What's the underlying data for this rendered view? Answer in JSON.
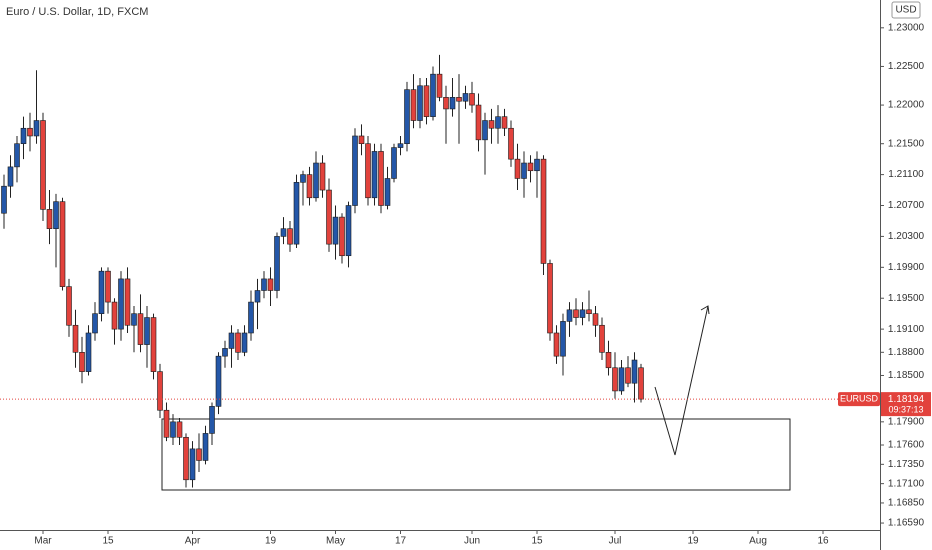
{
  "chart_data": {
    "type": "candlestick",
    "title": "Euro / U.S. Dollar, 1D, FXCM",
    "currency": "USD",
    "categories": [
      null,
      null,
      null,
      null,
      null,
      null,
      "Mar",
      null,
      null,
      null,
      null,
      null,
      null,
      null,
      null,
      null,
      "15",
      null,
      null,
      null,
      null,
      null,
      null,
      null,
      null,
      null,
      null,
      null,
      null,
      "Apr",
      null,
      null,
      null,
      null,
      null,
      null,
      null,
      null,
      null,
      null,
      null,
      "19",
      null,
      null,
      null,
      null,
      null,
      null,
      null,
      null,
      null,
      "May",
      null,
      null,
      null,
      null,
      null,
      null,
      null,
      null,
      null,
      "17",
      null,
      null,
      null,
      null,
      null,
      null,
      null,
      null,
      null,
      null,
      "Jun",
      null,
      null,
      null,
      null,
      null,
      null,
      null,
      null,
      null,
      "15",
      null,
      null,
      null,
      null,
      null,
      null,
      null,
      null,
      null,
      null,
      null,
      "Jul",
      null,
      null,
      null,
      null,
      null,
      null,
      null,
      null,
      null,
      null,
      null,
      "19",
      null,
      null,
      null,
      null,
      null,
      null,
      null,
      null,
      null,
      "Aug",
      null,
      null,
      null,
      null,
      null,
      null,
      null,
      null,
      null,
      "16"
    ],
    "open": [
      1.206,
      1.2095,
      1.212,
      1.215,
      1.217,
      1.216,
      1.218,
      1.2065,
      1.204,
      1.2075,
      1.1965,
      1.1915,
      1.188,
      1.1855,
      1.1905,
      1.193,
      1.1985,
      1.1945,
      1.191,
      1.1975,
      1.1915,
      1.193,
      1.189,
      1.1925,
      1.1855,
      1.1805,
      1.177,
      1.179,
      1.177,
      1.1715,
      1.1755,
      1.174,
      1.1775,
      1.181,
      1.1875,
      1.1885,
      1.1905,
      1.188,
      1.1905,
      1.1945,
      1.196,
      1.1975,
      1.196,
      1.203,
      1.204,
      1.202,
      1.21,
      1.211,
      1.208,
      1.2125,
      1.209,
      1.202,
      1.2055,
      1.2005,
      1.207,
      1.216,
      1.215,
      1.208,
      1.214,
      1.207,
      1.2105,
      1.2145,
      1.215,
      1.222,
      1.218,
      1.2225,
      1.2185,
      1.224,
      1.221,
      1.2195,
      1.221,
      1.2205,
      1.2215,
      1.22,
      1.2155,
      1.218,
      1.217,
      1.2185,
      1.217,
      1.213,
      1.2105,
      1.2125,
      1.2115,
      1.213,
      1.1995,
      1.1905,
      1.1875,
      1.192,
      1.1935,
      1.1925,
      1.1935,
      1.193,
      1.1915,
      1.188,
      1.186,
      1.183,
      1.186,
      1.184,
      1.186,
      null,
      null,
      null,
      null,
      null,
      null,
      null,
      null,
      null,
      null,
      null,
      null,
      null,
      null,
      null,
      null,
      null,
      null,
      null,
      null,
      null,
      null,
      null,
      null,
      null,
      null,
      null,
      null
    ],
    "high": [
      1.211,
      1.2135,
      1.216,
      1.2185,
      1.219,
      1.2245,
      1.219,
      1.209,
      1.2085,
      1.208,
      1.1975,
      1.1935,
      1.19,
      1.1915,
      1.1945,
      1.199,
      1.199,
      1.195,
      1.1985,
      1.199,
      1.194,
      1.1955,
      1.194,
      1.193,
      1.1865,
      1.1815,
      1.18,
      1.1795,
      1.1775,
      1.1765,
      1.1775,
      1.1785,
      1.1815,
      1.188,
      1.1895,
      1.1915,
      1.191,
      1.1915,
      1.196,
      1.1975,
      1.1985,
      1.199,
      1.2035,
      1.2055,
      1.205,
      1.211,
      1.2115,
      1.212,
      1.214,
      1.2135,
      1.2105,
      1.207,
      1.206,
      1.2075,
      1.217,
      1.2175,
      1.216,
      1.215,
      1.215,
      1.212,
      1.215,
      1.216,
      1.223,
      1.224,
      1.2235,
      1.2235,
      1.225,
      1.2265,
      1.2225,
      1.2235,
      1.224,
      1.2225,
      1.223,
      1.2215,
      1.219,
      1.2195,
      1.22,
      1.2195,
      1.218,
      1.215,
      1.214,
      1.2135,
      1.214,
      1.2135,
      1.2,
      1.1915,
      1.193,
      1.1945,
      1.195,
      1.1945,
      1.196,
      1.194,
      1.1925,
      1.1895,
      1.188,
      1.187,
      1.1875,
      1.188,
      1.1865,
      null,
      null,
      null,
      null,
      null,
      null,
      null,
      null,
      null,
      null,
      null,
      null,
      null,
      null,
      null,
      null,
      null,
      null,
      null,
      null,
      null,
      null,
      null,
      null,
      null,
      null,
      null,
      null
    ],
    "low": [
      1.204,
      1.208,
      1.21,
      1.213,
      1.214,
      1.215,
      1.205,
      1.202,
      1.199,
      1.196,
      1.19,
      1.186,
      1.184,
      1.185,
      1.1895,
      1.192,
      1.193,
      1.189,
      1.1895,
      1.1905,
      1.188,
      1.188,
      1.186,
      1.1845,
      1.1795,
      1.1765,
      1.176,
      1.176,
      1.1705,
      1.1705,
      1.1725,
      1.1735,
      1.176,
      1.18,
      1.186,
      1.186,
      1.187,
      1.1875,
      1.1895,
      1.191,
      1.195,
      1.194,
      1.195,
      1.202,
      1.201,
      1.2015,
      1.207,
      1.207,
      1.2075,
      1.208,
      1.201,
      1.2,
      1.1995,
      1.199,
      1.206,
      1.2135,
      1.207,
      1.207,
      1.206,
      1.2065,
      1.21,
      1.2135,
      1.214,
      1.217,
      1.217,
      1.2175,
      1.218,
      1.2205,
      1.215,
      1.2185,
      1.215,
      1.2195,
      1.219,
      1.214,
      1.211,
      1.215,
      1.215,
      1.216,
      1.212,
      1.209,
      1.208,
      1.21,
      1.208,
      1.198,
      1.1895,
      1.1865,
      1.185,
      1.19,
      1.1915,
      1.1915,
      1.192,
      1.19,
      1.187,
      1.185,
      1.182,
      1.1825,
      1.1835,
      1.1815,
      1.1815,
      null,
      null,
      null,
      null,
      null,
      null,
      null,
      null,
      null,
      null,
      null,
      null,
      null,
      null,
      null,
      null,
      null,
      null,
      null,
      null,
      null,
      null,
      null,
      null,
      null,
      null,
      null,
      null
    ],
    "close": [
      1.2095,
      1.212,
      1.215,
      1.217,
      1.216,
      1.218,
      1.2065,
      1.204,
      1.2075,
      1.1965,
      1.1915,
      1.188,
      1.1855,
      1.1905,
      1.193,
      1.1985,
      1.1945,
      1.191,
      1.1975,
      1.1915,
      1.193,
      1.189,
      1.1925,
      1.1855,
      1.1805,
      1.177,
      1.179,
      1.177,
      1.1715,
      1.1755,
      1.174,
      1.1775,
      1.181,
      1.1875,
      1.1885,
      1.1905,
      1.188,
      1.1905,
      1.1945,
      1.196,
      1.1975,
      1.196,
      1.203,
      1.204,
      1.202,
      1.21,
      1.211,
      1.208,
      1.2125,
      1.209,
      1.202,
      1.2055,
      1.2005,
      1.207,
      1.216,
      1.215,
      1.208,
      1.214,
      1.207,
      1.2105,
      1.2145,
      1.215,
      1.222,
      1.218,
      1.2225,
      1.2185,
      1.224,
      1.221,
      1.2195,
      1.221,
      1.2205,
      1.2215,
      1.22,
      1.2155,
      1.218,
      1.217,
      1.2185,
      1.217,
      1.213,
      1.2105,
      1.2125,
      1.2115,
      1.213,
      1.1995,
      1.1905,
      1.1875,
      1.192,
      1.1935,
      1.1925,
      1.1935,
      1.193,
      1.1915,
      1.188,
      1.186,
      1.183,
      1.186,
      1.184,
      1.187,
      1.18194,
      null,
      null,
      null,
      null,
      null,
      null,
      null,
      null,
      null,
      null,
      null,
      null,
      null,
      null,
      null,
      null,
      null,
      null,
      null,
      null,
      null,
      null,
      null,
      null,
      null,
      null,
      null,
      null
    ],
    "up_color": "#2457a8",
    "down_color": "#e2423c",
    "ylim": [
      1.165,
      1.2336
    ],
    "yticks": [
      {
        "value": 1.23,
        "label": "1.23000"
      },
      {
        "value": 1.225,
        "label": "1.22500"
      },
      {
        "value": 1.22,
        "label": "1.22000"
      },
      {
        "value": 1.215,
        "label": "1.21500"
      },
      {
        "value": 1.211,
        "label": "1.21100"
      },
      {
        "value": 1.207,
        "label": "1.20700"
      },
      {
        "value": 1.203,
        "label": "1.20300"
      },
      {
        "value": 1.199,
        "label": "1.19900"
      },
      {
        "value": 1.195,
        "label": "1.19500"
      },
      {
        "value": 1.191,
        "label": "1.19100"
      },
      {
        "value": 1.188,
        "label": "1.18800"
      },
      {
        "value": 1.185,
        "label": "1.18500"
      },
      {
        "value": 1.179,
        "label": "1.17900"
      },
      {
        "value": 1.176,
        "label": "1.17600"
      },
      {
        "value": 1.1735,
        "label": "1.17350"
      },
      {
        "value": 1.171,
        "label": "1.17100"
      },
      {
        "value": 1.1685,
        "label": "1.16850"
      },
      {
        "value": 1.1659,
        "label": "1.16590"
      }
    ],
    "grid": false,
    "last_price": {
      "name": "EURUSD",
      "value": 1.18194,
      "countdown": "09:37:13",
      "color": "#e2423c"
    }
  }
}
